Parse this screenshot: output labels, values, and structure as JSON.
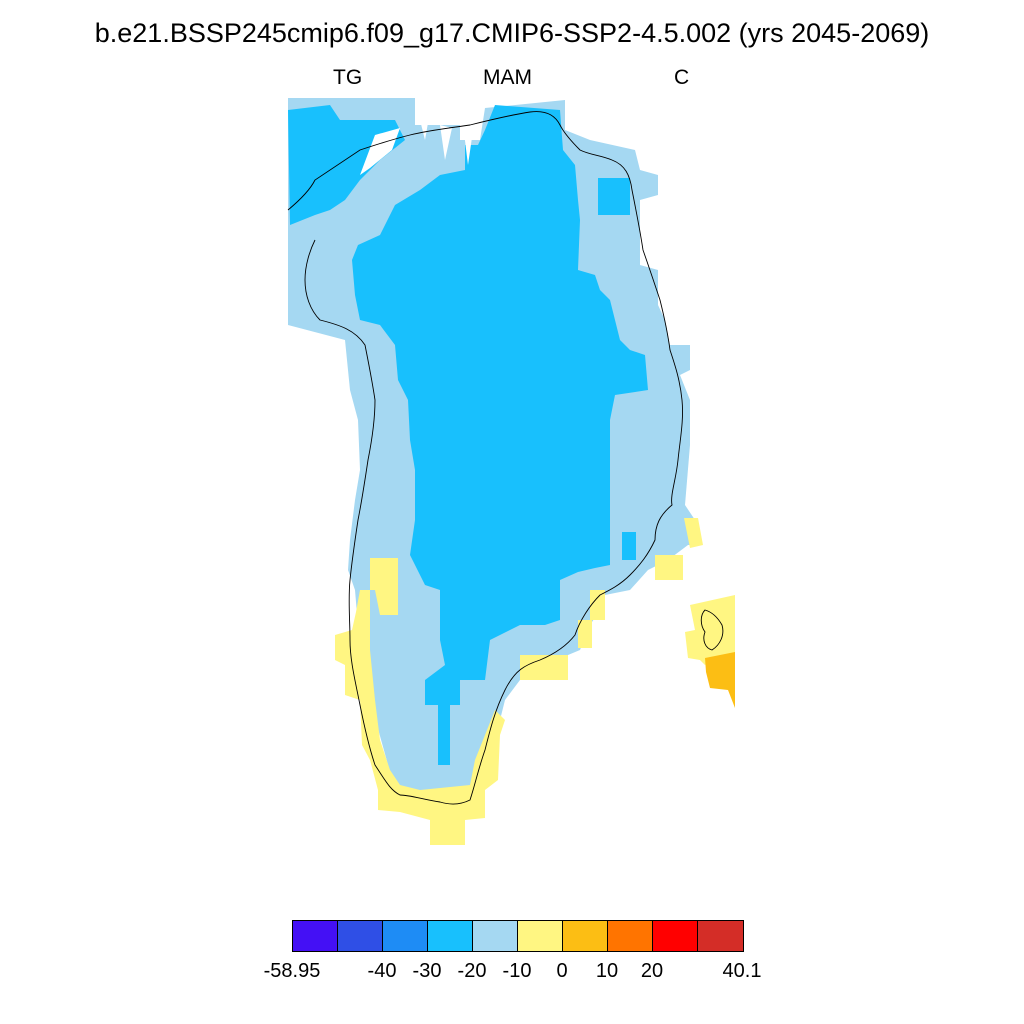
{
  "title": "b.e21.BSSP245cmip6.f09_g17.CMIP6-SSP2-4.5.002 (yrs 2045-2069)",
  "subtitles": {
    "left": "TG",
    "center": "MAM",
    "right": "C"
  },
  "legend": {
    "colors": [
      "#4410f5",
      "#2f4fe6",
      "#1e8cf5",
      "#18c0fd",
      "#a5d8f2",
      "#fff682",
      "#fcbe14",
      "#ff7400",
      "#ff0000",
      "#d42d27"
    ],
    "labels": [
      "-58.95",
      "-40",
      "-30",
      "-20",
      "-10",
      "0",
      "10",
      "20",
      "40.1"
    ]
  },
  "map": {
    "region": "Greenland",
    "levels": {
      "dark_blue": "-30 to -20",
      "light_blue": "-20 to -10",
      "yellow": "-10 to 0",
      "orange": "0 to 10"
    }
  }
}
